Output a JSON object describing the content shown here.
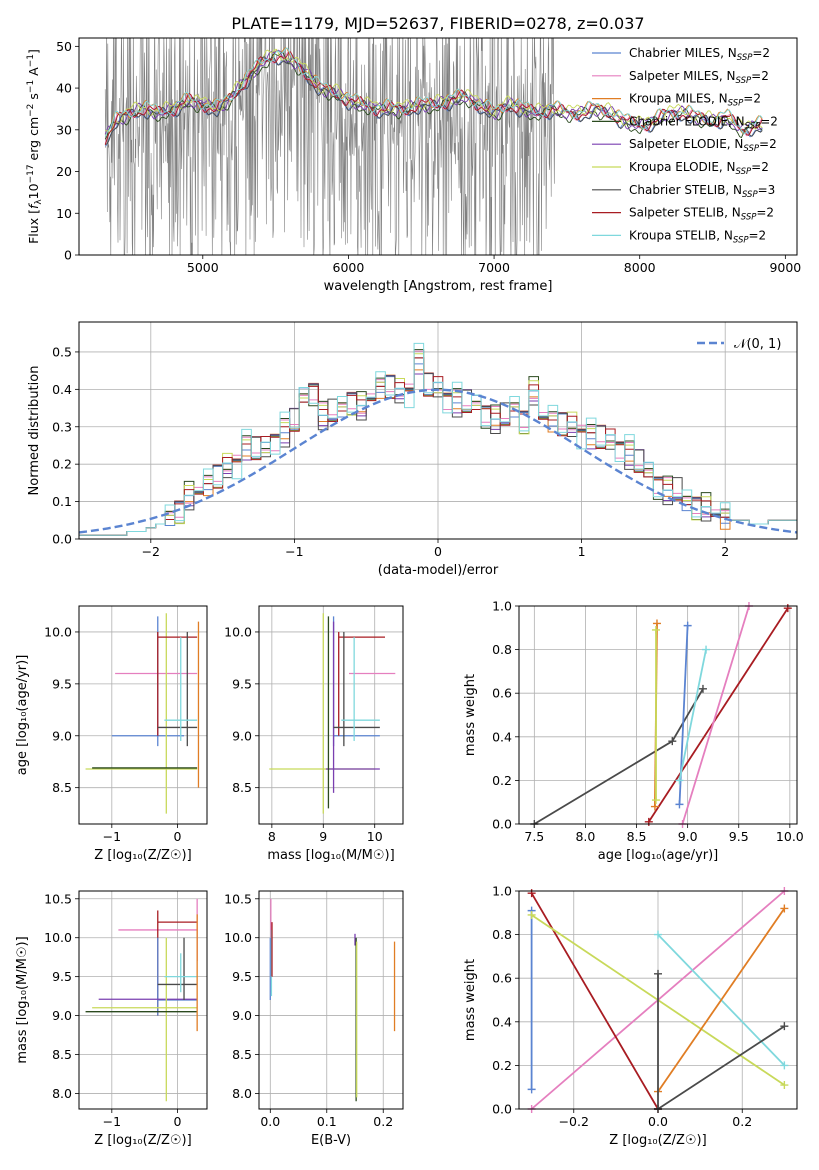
{
  "title": "PLATE=1179, MJD=52637, FIBERID=0278, z=0.037",
  "colors": {
    "chabrier_miles": "#5b84d1",
    "salpeter_miles": "#e57fbf",
    "kroupa_miles": "#e07d24",
    "chabrier_elodie": "#2b4a1f",
    "salpeter_elodie": "#7a3fb0",
    "kroupa_elodie": "#c8d95a",
    "chabrier_stelib": "#4a4a4a",
    "salpeter_stelib": "#a81c22",
    "kroupa_stelib": "#7fd8dd",
    "data": "#808080",
    "gauss": "#5b84d1"
  },
  "chart_data": [
    {
      "id": "spectrum",
      "type": "line",
      "xlabel": "wavelength [Angstrom, rest frame]",
      "ylabel_parts": {
        "a": "Flux [",
        "b": "f",
        "c": "λ",
        "d": "10",
        "e": "−17",
        "f": " erg cm",
        "g": "−2",
        "h": " s",
        "i": "−1",
        "j": " A",
        "k": "−1",
        "l": "]"
      },
      "xlim": [
        4150,
        9080
      ],
      "ylim": [
        0,
        52
      ],
      "xticks": [
        5000,
        6000,
        7000,
        8000,
        9000
      ],
      "yticks": [
        0,
        10,
        20,
        30,
        40,
        50
      ],
      "grid": false,
      "legend_position": "top-right",
      "legend": [
        {
          "name": "Chabrier MILES, N",
          "sub": "SSP",
          "tail": "=2",
          "color_key": "chabrier_miles"
        },
        {
          "name": "Salpeter MILES, N",
          "sub": "SSP",
          "tail": "=2",
          "color_key": "salpeter_miles"
        },
        {
          "name": "Kroupa MILES, N",
          "sub": "SSP",
          "tail": "=2",
          "color_key": "kroupa_miles"
        },
        {
          "name": "Chabrier ELODIE, N",
          "sub": "SSP",
          "tail": "=2",
          "color_key": "chabrier_elodie"
        },
        {
          "name": "Salpeter ELODIE, N",
          "sub": "SSP",
          "tail": "=2",
          "color_key": "salpeter_elodie"
        },
        {
          "name": "Kroupa ELODIE, N",
          "sub": "SSP",
          "tail": "=2",
          "color_key": "kroupa_elodie"
        },
        {
          "name": "Chabrier STELIB, N",
          "sub": "SSP",
          "tail": "=3",
          "color_key": "chabrier_stelib"
        },
        {
          "name": "Salpeter STELIB, N",
          "sub": "SSP",
          "tail": "=2",
          "color_key": "salpeter_stelib"
        },
        {
          "name": "Kroupa STELIB, N",
          "sub": "SSP",
          "tail": "=2",
          "color_key": "kroupa_stelib"
        }
      ],
      "model_continuum": [
        [
          4330,
          28
        ],
        [
          4400,
          32
        ],
        [
          4500,
          34
        ],
        [
          4600,
          35
        ],
        [
          4700,
          34
        ],
        [
          4800,
          35
        ],
        [
          4900,
          37
        ],
        [
          5000,
          36
        ],
        [
          5100,
          35
        ],
        [
          5200,
          38
        ],
        [
          5300,
          42
        ],
        [
          5400,
          46
        ],
        [
          5500,
          48
        ],
        [
          5600,
          47
        ],
        [
          5700,
          44
        ],
        [
          5800,
          40
        ],
        [
          5900,
          39
        ],
        [
          6000,
          37
        ],
        [
          6100,
          36
        ],
        [
          6200,
          35
        ],
        [
          6300,
          35
        ],
        [
          6400,
          35
        ],
        [
          6500,
          36
        ],
        [
          6600,
          36
        ],
        [
          6700,
          37
        ],
        [
          6800,
          38
        ],
        [
          6900,
          36
        ],
        [
          7000,
          34
        ],
        [
          7100,
          36
        ],
        [
          7200,
          35
        ],
        [
          7300,
          34
        ],
        [
          7400,
          35
        ],
        [
          7500,
          34
        ],
        [
          7600,
          34
        ],
        [
          7700,
          35
        ],
        [
          7800,
          34
        ],
        [
          7900,
          32
        ],
        [
          8000,
          31
        ],
        [
          8100,
          32
        ],
        [
          8200,
          34
        ],
        [
          8300,
          34
        ],
        [
          8400,
          33
        ],
        [
          8500,
          32
        ],
        [
          8600,
          33
        ],
        [
          8700,
          30
        ],
        [
          8800,
          31
        ],
        [
          8850,
          31
        ]
      ],
      "data_span": [
        4330,
        7420
      ],
      "data_clip_top": 52
    },
    {
      "id": "residuals",
      "type": "histogram",
      "xlabel": "(data-model)/error",
      "ylabel": "Normed distribution",
      "xlim": [
        -2.5,
        2.5
      ],
      "ylim": [
        0,
        0.58
      ],
      "xticks": [
        -2,
        -1,
        0,
        1,
        2
      ],
      "yticks": [
        0.0,
        0.1,
        0.2,
        0.3,
        0.4,
        0.5
      ],
      "grid": true,
      "legend_position": "top-right",
      "legend": [
        {
          "name": "𝒩(0, 1)",
          "color_key": "gauss",
          "dashed": true
        }
      ],
      "bin_width": 0.1,
      "bins_start": -2.5,
      "heights": [
        0.01,
        0.01,
        0.01,
        0.01,
        0.01,
        0.02,
        0.02,
        0.03,
        0.04,
        0.06,
        0.08,
        0.11,
        0.13,
        0.15,
        0.17,
        0.19,
        0.21,
        0.25,
        0.24,
        0.24,
        0.27,
        0.29,
        0.31,
        0.38,
        0.4,
        0.33,
        0.33,
        0.35,
        0.37,
        0.35,
        0.38,
        0.41,
        0.41,
        0.39,
        0.4,
        0.48,
        0.41,
        0.4,
        0.38,
        0.37,
        0.36,
        0.36,
        0.34,
        0.32,
        0.32,
        0.35,
        0.32,
        0.39,
        0.33,
        0.32,
        0.31,
        0.3,
        0.29,
        0.28,
        0.27,
        0.26,
        0.25,
        0.23,
        0.2,
        0.18,
        0.15,
        0.13,
        0.12,
        0.1,
        0.09,
        0.08,
        0.07,
        0.06,
        0.05,
        0.05,
        0.04,
        0.04,
        0.05,
        0.05,
        0.05
      ],
      "offsets": [
        0.0,
        0.01,
        -0.01,
        0.02,
        -0.015,
        0.015,
        -0.02,
        0.01,
        0.025
      ]
    },
    {
      "id": "age_vs_Z",
      "type": "errorbar",
      "xlabel": "Z [log₁₀(Z/Z☉)]",
      "ylabel": "age  [log₁₀(age/yr)]",
      "xlim": [
        -1.5,
        0.45
      ],
      "ylim": [
        8.15,
        10.25
      ],
      "xticks": [
        -1,
        0
      ],
      "yticks": [
        8.5,
        9.0,
        9.5,
        10.0
      ],
      "grid": true,
      "segments": [
        {
          "c": "salpeter_miles",
          "h": [
            -0.95,
            0.3,
            9.6
          ]
        },
        {
          "c": "chabrier_miles",
          "h": [
            -1.0,
            0.1,
            9.0
          ],
          "v": [
            -0.3,
            8.9,
            10.15
          ]
        },
        {
          "c": "kroupa_elodie",
          "h": [
            -1.4,
            0.3,
            8.68
          ],
          "v": [
            -0.17,
            8.25,
            10.18
          ]
        },
        {
          "c": "chabrier_elodie",
          "h": [
            -1.3,
            0.3,
            8.69
          ]
        },
        {
          "c": "salpeter_stelib",
          "h": [
            -0.3,
            0.3,
            9.95
          ],
          "v": [
            -0.3,
            9.0,
            10.0
          ]
        },
        {
          "c": "chabrier_stelib",
          "h": [
            -0.3,
            0.3,
            9.08
          ],
          "v": [
            0.15,
            8.9,
            10.0
          ]
        },
        {
          "c": "kroupa_stelib",
          "h": [
            -0.2,
            0.3,
            9.15
          ],
          "v": [
            0.05,
            8.95,
            9.95
          ]
        },
        {
          "c": "kroupa_miles",
          "v": [
            0.32,
            8.5,
            10.1
          ]
        }
      ]
    },
    {
      "id": "age_vs_mass",
      "type": "errorbar",
      "xlabel": "mass [log₁₀(M/M☉)]",
      "ylabel": "",
      "xlim": [
        7.75,
        10.55
      ],
      "ylim": [
        8.15,
        10.25
      ],
      "xticks": [
        8,
        9,
        10
      ],
      "yticks": [
        8.5,
        9.0,
        9.5,
        10.0
      ],
      "grid": true,
      "segments": [
        {
          "c": "salpeter_miles",
          "h": [
            9.5,
            10.4,
            9.6
          ]
        },
        {
          "c": "chabrier_miles",
          "h": [
            9.2,
            10.1,
            9.0
          ],
          "v": [
            9.2,
            8.9,
            10.15
          ]
        },
        {
          "c": "kroupa_elodie",
          "h": [
            7.95,
            10.0,
            8.68
          ],
          "v": [
            9.0,
            8.25,
            10.18
          ]
        },
        {
          "c": "salpeter_elodie",
          "h": [
            9.05,
            10.1,
            8.68
          ],
          "v": [
            9.2,
            8.45,
            10.1
          ]
        },
        {
          "c": "salpeter_stelib",
          "h": [
            9.3,
            10.2,
            9.95
          ],
          "v": [
            9.3,
            9.0,
            10.0
          ]
        },
        {
          "c": "chabrier_stelib",
          "h": [
            9.2,
            10.1,
            9.08
          ],
          "v": [
            9.4,
            8.9,
            10.0
          ]
        },
        {
          "c": "kroupa_stelib",
          "h": [
            9.35,
            10.1,
            9.15
          ],
          "v": [
            9.6,
            8.95,
            9.95
          ]
        },
        {
          "c": "chabrier_elodie",
          "v": [
            9.1,
            8.3,
            10.15
          ]
        }
      ]
    },
    {
      "id": "weight_vs_age",
      "type": "line",
      "xlabel": "age  [log₁₀(age/yr)]",
      "ylabel": "mass weight",
      "xlim": [
        7.35,
        10.07
      ],
      "ylim": [
        0,
        1.0
      ],
      "xticks": [
        7.5,
        8.0,
        8.5,
        9.0,
        9.5,
        10.0
      ],
      "yticks": [
        0.0,
        0.2,
        0.4,
        0.6,
        0.8,
        1.0
      ],
      "grid": true,
      "lines": [
        {
          "c": "chabrier_stelib",
          "pts": [
            [
              7.5,
              0.0
            ],
            [
              8.85,
              0.38
            ],
            [
              9.15,
              0.62
            ]
          ]
        },
        {
          "c": "salpeter_stelib",
          "pts": [
            [
              8.62,
              0.01
            ],
            [
              9.98,
              0.99
            ]
          ]
        },
        {
          "c": "salpeter_miles",
          "pts": [
            [
              8.95,
              0.0
            ],
            [
              9.6,
              1.0
            ]
          ]
        },
        {
          "c": "chabrier_miles",
          "pts": [
            [
              8.92,
              0.09
            ],
            [
              9.0,
              0.91
            ]
          ]
        },
        {
          "c": "kroupa_stelib",
          "pts": [
            [
              8.92,
              0.2
            ],
            [
              9.18,
              0.8
            ]
          ]
        },
        {
          "c": "kroupa_miles",
          "pts": [
            [
              8.68,
              0.08
            ],
            [
              8.7,
              0.92
            ]
          ]
        },
        {
          "c": "kroupa_elodie",
          "pts": [
            [
              8.69,
              0.11
            ],
            [
              8.69,
              0.89
            ]
          ]
        }
      ]
    },
    {
      "id": "mass_vs_Z",
      "type": "errorbar",
      "xlabel": "Z [log₁₀(Z/Z☉)]",
      "ylabel": "mass [log₁₀(M/M☉)]",
      "xlim": [
        -1.5,
        0.45
      ],
      "ylim": [
        7.8,
        10.6
      ],
      "xticks": [
        -1,
        0
      ],
      "yticks": [
        8.0,
        8.5,
        9.0,
        9.5,
        10.0,
        10.5
      ],
      "grid": true,
      "segments": [
        {
          "c": "salpeter_miles",
          "h": [
            -0.9,
            0.3,
            10.1
          ],
          "v": [
            0.3,
            9.7,
            10.5
          ]
        },
        {
          "c": "salpeter_stelib",
          "h": [
            -0.3,
            0.3,
            10.2
          ],
          "v": [
            -0.3,
            9.0,
            10.35
          ]
        },
        {
          "c": "chabrier_miles",
          "h": [
            -0.3,
            0.3,
            9.2
          ],
          "v": [
            -0.3,
            9.0,
            10.0
          ]
        },
        {
          "c": "salpeter_elodie",
          "h": [
            -1.2,
            0.3,
            9.21
          ]
        },
        {
          "c": "kroupa_elodie",
          "h": [
            -1.3,
            0.3,
            9.1
          ],
          "v": [
            -0.17,
            7.9,
            10.0
          ]
        },
        {
          "c": "chabrier_elodie",
          "h": [
            -1.4,
            0.3,
            9.05
          ]
        },
        {
          "c": "chabrier_stelib",
          "h": [
            -0.3,
            0.3,
            9.4
          ],
          "v": [
            0.1,
            9.2,
            10.0
          ]
        },
        {
          "c": "kroupa_stelib",
          "h": [
            -0.2,
            0.3,
            9.5
          ],
          "v": [
            0.05,
            9.3,
            9.8
          ]
        },
        {
          "c": "kroupa_miles",
          "v": [
            0.3,
            8.8,
            10.3
          ]
        }
      ]
    },
    {
      "id": "mass_vs_ebv",
      "type": "errorbar",
      "xlabel": "E(B-V)",
      "ylabel": "",
      "xlim": [
        -0.02,
        0.235
      ],
      "ylim": [
        7.8,
        10.6
      ],
      "xticks": [
        0.0,
        0.1,
        0.2
      ],
      "yticks": [
        8.0,
        8.5,
        9.0,
        9.5,
        10.0,
        10.5
      ],
      "grid": true,
      "segments": [
        {
          "c": "salpeter_miles",
          "v": [
            0.001,
            9.3,
            10.5
          ]
        },
        {
          "c": "chabrier_miles",
          "v": [
            0.0,
            9.2,
            10.0
          ]
        },
        {
          "c": "kroupa_stelib",
          "v": [
            0.002,
            9.25,
            10.1
          ]
        },
        {
          "c": "salpeter_stelib",
          "v": [
            0.003,
            9.5,
            10.2
          ]
        },
        {
          "c": "salpeter_elodie",
          "v": [
            0.15,
            9.9,
            10.05
          ]
        },
        {
          "c": "chabrier_elodie",
          "v": [
            0.152,
            7.9,
            10.0
          ]
        },
        {
          "c": "kroupa_elodie",
          "v": [
            0.153,
            7.95,
            9.95
          ]
        },
        {
          "c": "kroupa_miles",
          "v": [
            0.22,
            8.8,
            9.95
          ]
        }
      ]
    },
    {
      "id": "weight_vs_Z",
      "type": "line",
      "xlabel": "Z [log₁₀(Z/Z☉)]",
      "ylabel": "mass weight",
      "xlim": [
        -0.33,
        0.33
      ],
      "ylim": [
        0,
        1.0
      ],
      "xticks": [
        -0.2,
        0.0,
        0.2
      ],
      "yticks": [
        0.0,
        0.2,
        0.4,
        0.6,
        0.8,
        1.0
      ],
      "grid": true,
      "lines": [
        {
          "c": "chabrier_miles",
          "pts": [
            [
              -0.3,
              0.09
            ],
            [
              -0.3,
              0.91
            ]
          ]
        },
        {
          "c": "salpeter_miles",
          "pts": [
            [
              -0.3,
              0.0
            ],
            [
              0.3,
              1.0
            ]
          ]
        },
        {
          "c": "salpeter_stelib",
          "pts": [
            [
              -0.3,
              0.99
            ],
            [
              0.0,
              0.0
            ]
          ]
        },
        {
          "c": "kroupa_elodie",
          "pts": [
            [
              -0.3,
              0.89
            ],
            [
              0.3,
              0.11
            ]
          ]
        },
        {
          "c": "kroupa_stelib",
          "pts": [
            [
              0.0,
              0.8
            ],
            [
              0.3,
              0.2
            ]
          ]
        },
        {
          "c": "kroupa_miles",
          "pts": [
            [
              0.0,
              0.08
            ],
            [
              0.3,
              0.92
            ]
          ]
        },
        {
          "c": "chabrier_stelib",
          "pts": [
            [
              0.0,
              0.0
            ],
            [
              0.0,
              0.62
            ],
            [
              0.0,
              0.0
            ],
            [
              0.3,
              0.38
            ]
          ]
        }
      ]
    }
  ]
}
